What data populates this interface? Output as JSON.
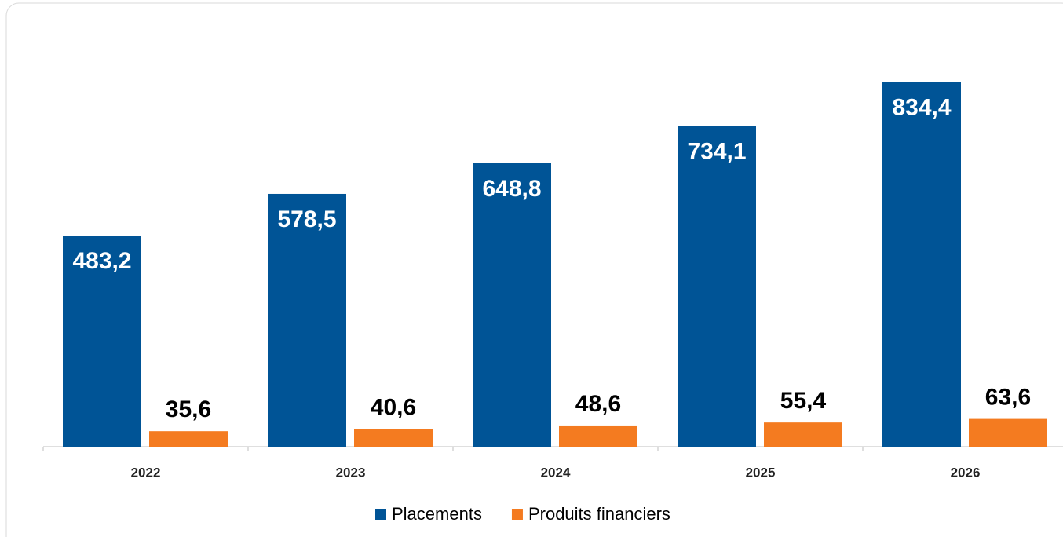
{
  "chart_data": {
    "type": "bar",
    "categories": [
      "2022",
      "2023",
      "2024",
      "2025",
      "2026"
    ],
    "series": [
      {
        "name": "Placements",
        "color": "#005496",
        "values": [
          483.2,
          578.5,
          648.8,
          734.1,
          834.4
        ],
        "value_labels": [
          "483,2",
          "578,5",
          "648,8",
          "734,1",
          "834,4"
        ]
      },
      {
        "name": "Produits financiers",
        "color": "#f47b20",
        "values": [
          35.6,
          40.6,
          48.6,
          55.4,
          63.6
        ],
        "value_labels": [
          "35,6",
          "40,6",
          "48,6",
          "55,4",
          "63,6"
        ]
      }
    ],
    "ylim": [
      0,
      900
    ],
    "legend": "bottom"
  }
}
